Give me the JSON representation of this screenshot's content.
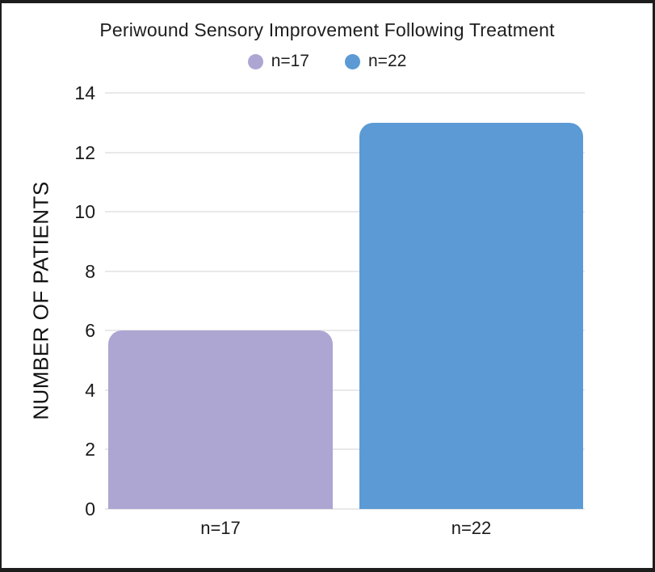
{
  "title": "Periwound Sensory Improvement Following Treatment",
  "legend": [
    {
      "label": "n=17",
      "color": "#ada6d2"
    },
    {
      "label": "n=22",
      "color": "#5b9ad5"
    }
  ],
  "chart_data": {
    "type": "bar",
    "title": "Periwound Sensory Improvement Following Treatment",
    "categories": [
      "n=17",
      "n=22"
    ],
    "values": [
      6,
      13
    ],
    "bar_colors": [
      "#ada6d2",
      "#5b9ad5"
    ],
    "xlabel": "",
    "ylabel": "NUMBER OF PATIENTS",
    "ylim": [
      0,
      14
    ],
    "yticks": [
      0,
      2,
      4,
      6,
      8,
      10,
      12,
      14
    ],
    "grid": true,
    "gridline_color": "#e9e9e9",
    "legend_position": "top",
    "frame_border_color": "#1d1d1d",
    "background_color": "#ffffff",
    "text_color": "#1b1b1b"
  }
}
